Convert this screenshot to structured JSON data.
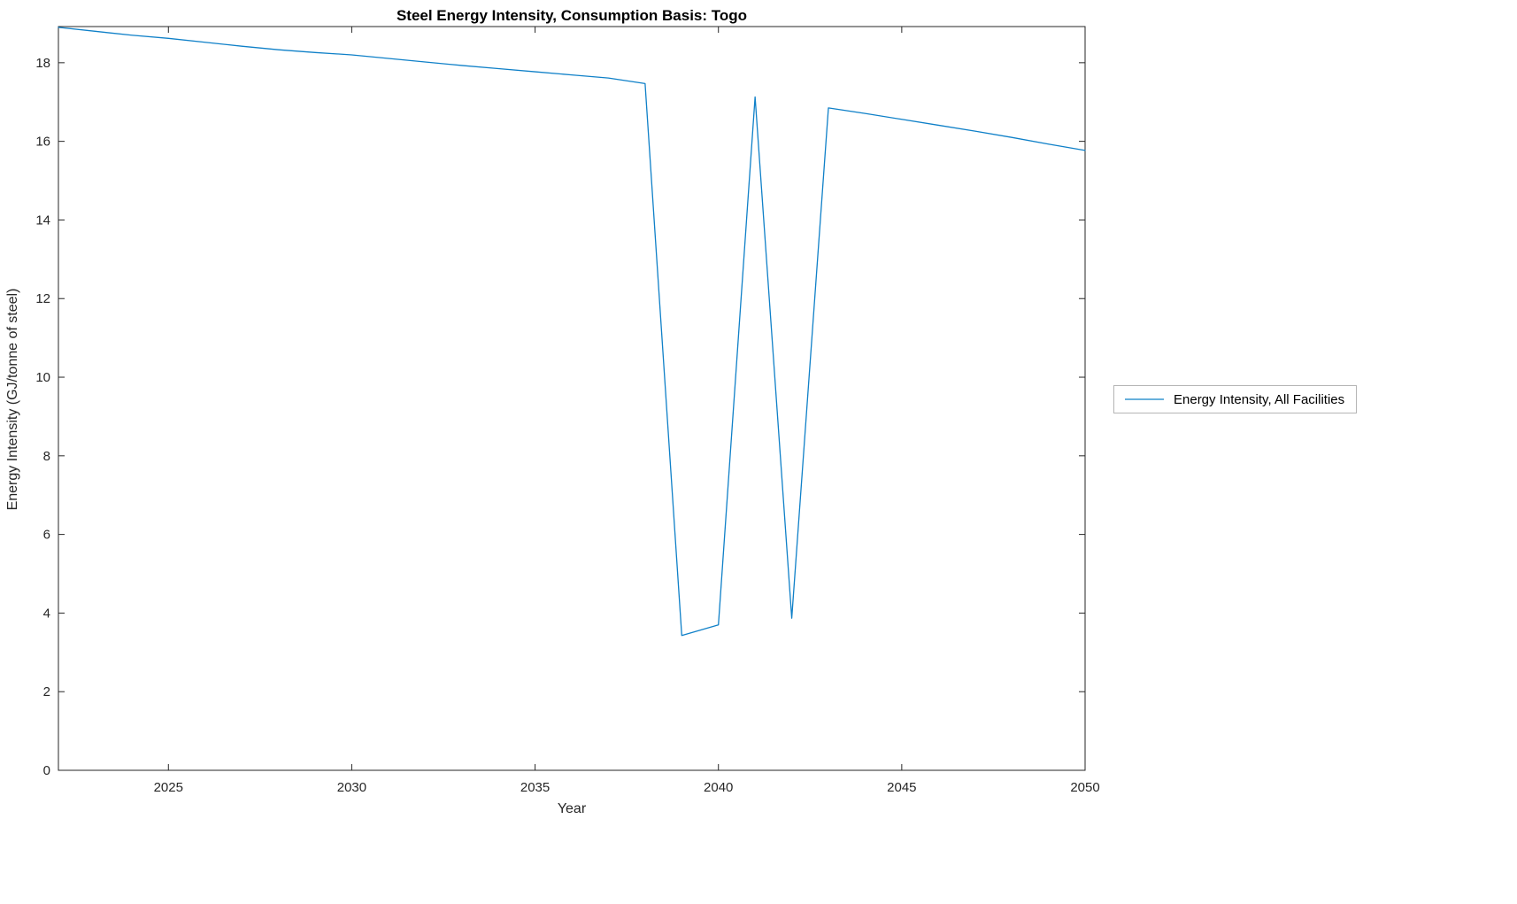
{
  "title": "Steel Energy Intensity, Consumption Basis: Togo",
  "axes": {
    "xlabel": "Year",
    "ylabel": "Energy Intensity (GJ/tonne of steel)"
  },
  "legend": {
    "label": "Energy Intensity, All Facilities"
  },
  "colors": {
    "line": "#0f80c8",
    "axis": "#262626",
    "legend_border": "#b5b5b5"
  },
  "chart_data": {
    "type": "line",
    "title": "Steel Energy Intensity, Consumption Basis: Togo",
    "xlabel": "Year",
    "ylabel": "Energy Intensity (GJ/tonne of steel)",
    "grid": false,
    "legend_position": "right-outside",
    "xlim": [
      2022,
      2050
    ],
    "ylim": [
      0,
      18.92
    ],
    "xticks": [
      2025,
      2030,
      2035,
      2040,
      2045,
      2050
    ],
    "yticks": [
      0,
      2,
      4,
      6,
      8,
      10,
      12,
      14,
      16,
      18
    ],
    "x": [
      2022,
      2023,
      2024,
      2025,
      2026,
      2027,
      2028,
      2029,
      2030,
      2031,
      2032,
      2033,
      2034,
      2035,
      2036,
      2037,
      2038,
      2039,
      2040,
      2041,
      2042,
      2043,
      2044,
      2045,
      2046,
      2047,
      2048,
      2049,
      2050
    ],
    "series": [
      {
        "name": "Energy Intensity, All Facilities",
        "color": "#0f80c8",
        "values": [
          18.9,
          18.8,
          18.7,
          18.62,
          18.52,
          18.42,
          18.33,
          18.26,
          18.2,
          18.11,
          18.02,
          17.93,
          17.85,
          17.77,
          17.69,
          17.61,
          17.47,
          3.43,
          3.7,
          17.13,
          3.87,
          16.85,
          16.71,
          16.56,
          16.41,
          16.26,
          16.1,
          15.93,
          15.77
        ]
      }
    ]
  }
}
